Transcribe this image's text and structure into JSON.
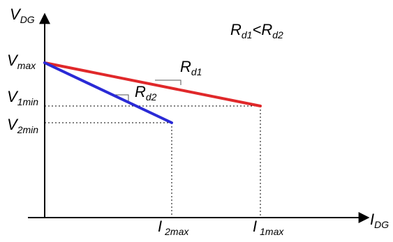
{
  "axes": {
    "y_label": "V",
    "y_label_sub": "DG",
    "x_label": "I",
    "x_label_sub": "DG"
  },
  "y_ticks": {
    "v_max": {
      "main": "V",
      "sub": "max"
    },
    "v1_min": {
      "main": "V",
      "sub": "1min"
    },
    "v2_min": {
      "main": "V",
      "sub": "2min"
    }
  },
  "x_ticks": {
    "i2_max": {
      "main": "I",
      "sub": "2max"
    },
    "i1_max": {
      "main": "I",
      "sub": "1max"
    }
  },
  "lines": {
    "rd1": {
      "main": "R",
      "sub": "d1",
      "color": "#e0282a"
    },
    "rd2": {
      "main": "R",
      "sub": "d2",
      "color": "#2a2ad6"
    }
  },
  "relation": {
    "left_main": "R",
    "left_sub": "d1",
    "operator": "<",
    "right_main": "R",
    "right_sub": "d2"
  }
}
